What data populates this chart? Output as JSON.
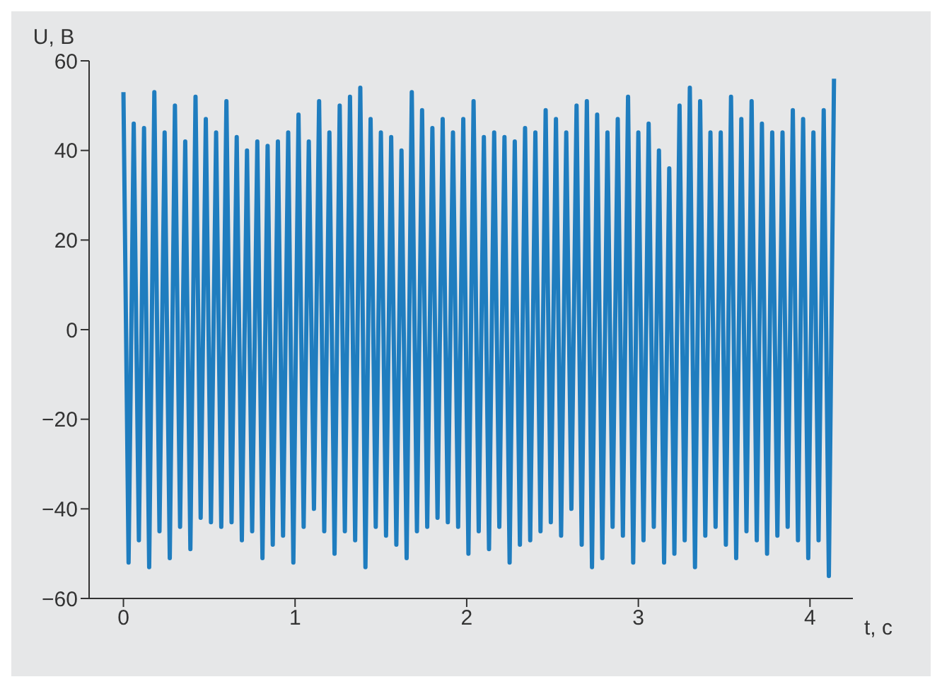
{
  "chart_data": {
    "type": "line",
    "xlabel": "t, c",
    "ylabel": "U, B",
    "color": "#1f7dbf",
    "xlim": [
      -0.2,
      4.25
    ],
    "ylim": [
      -60,
      60
    ],
    "xticks": [
      0,
      1,
      2,
      3,
      4
    ],
    "yticks": [
      -60,
      -40,
      -20,
      0,
      20,
      40,
      60
    ],
    "grid": false,
    "legend": false,
    "x": [
      0,
      0.03,
      0.06,
      0.09,
      0.12,
      0.15,
      0.18,
      0.21,
      0.24,
      0.27,
      0.3,
      0.33,
      0.36,
      0.39,
      0.42,
      0.45,
      0.48,
      0.51,
      0.54,
      0.57,
      0.6,
      0.63,
      0.66,
      0.69,
      0.72,
      0.75,
      0.78,
      0.81,
      0.84,
      0.87,
      0.9,
      0.93,
      0.96,
      0.99,
      1.02,
      1.05,
      1.08,
      1.11,
      1.14,
      1.17,
      1.2,
      1.23,
      1.26,
      1.29,
      1.32,
      1.35,
      1.38,
      1.41,
      1.44,
      1.47,
      1.5,
      1.53,
      1.56,
      1.59,
      1.62,
      1.65,
      1.68,
      1.71,
      1.74,
      1.77,
      1.8,
      1.83,
      1.86,
      1.89,
      1.92,
      1.95,
      1.98,
      2.01,
      2.04,
      2.07,
      2.1,
      2.13,
      2.16,
      2.19,
      2.22,
      2.25,
      2.28,
      2.31,
      2.34,
      2.37,
      2.4,
      2.43,
      2.46,
      2.49,
      2.52,
      2.55,
      2.58,
      2.61,
      2.64,
      2.67,
      2.7,
      2.73,
      2.76,
      2.79,
      2.82,
      2.85,
      2.88,
      2.91,
      2.94,
      2.97,
      3.0,
      3.03,
      3.06,
      3.09,
      3.12,
      3.15,
      3.18,
      3.21,
      3.24,
      3.27,
      3.3,
      3.33,
      3.36,
      3.39,
      3.42,
      3.45,
      3.48,
      3.51,
      3.54,
      3.57,
      3.6,
      3.63,
      3.66,
      3.69,
      3.72,
      3.75,
      3.78,
      3.81,
      3.84,
      3.87,
      3.9,
      3.93,
      3.96,
      3.99,
      4.02,
      4.05,
      4.08,
      4.11,
      4.14
    ],
    "values": [
      53,
      -52,
      46,
      -47,
      45,
      -53,
      53,
      -45,
      44,
      -51,
      50,
      -44,
      42,
      -49,
      52,
      -42,
      47,
      -43,
      44,
      -44,
      51,
      -43,
      43,
      -47,
      40,
      -45,
      42,
      -51,
      41,
      -48,
      42,
      -46,
      44,
      -52,
      48,
      -44,
      42,
      -40,
      51,
      -45,
      44,
      -50,
      50,
      -45,
      52,
      -47,
      54,
      -53,
      47,
      -44,
      44,
      -46,
      43,
      -48,
      40,
      -51,
      53,
      -45,
      49,
      -44,
      45,
      -42,
      47,
      -43,
      44,
      -44,
      47,
      -50,
      51,
      -45,
      43,
      -49,
      44,
      -44,
      43,
      -52,
      42,
      -48,
      45,
      -47,
      44,
      -45,
      49,
      -43,
      47,
      -46,
      44,
      -40,
      50,
      -48,
      51,
      -53,
      48,
      -51,
      44,
      -44,
      47,
      -46,
      52,
      -52,
      44,
      -47,
      46,
      -44,
      40,
      -52,
      36,
      -50,
      50,
      -47,
      54,
      -53,
      51,
      -46,
      44,
      -44,
      44,
      -48,
      52,
      -51,
      47,
      -45,
      51,
      -47,
      46,
      -50,
      44,
      -46,
      44,
      -44,
      49,
      -47,
      47,
      -51,
      44,
      -47,
      49,
      -55,
      56
    ]
  }
}
